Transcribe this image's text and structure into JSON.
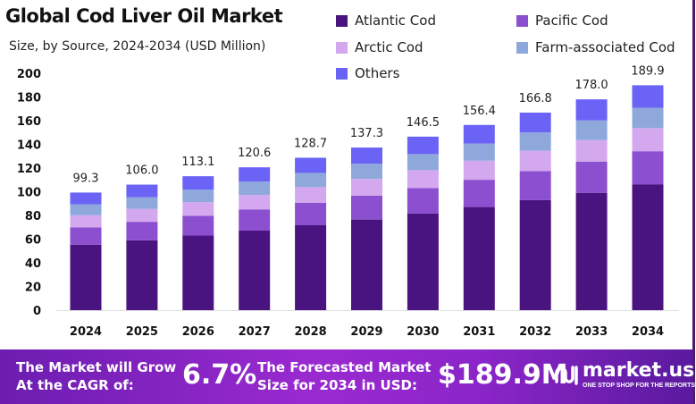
{
  "chart_data": {
    "type": "bar",
    "stacked": true,
    "title": "Global Cod Liver Oil Market",
    "subtitle": "Size, by Source, 2024-2034 (USD Million)",
    "categories": [
      "2024",
      "2025",
      "2026",
      "2027",
      "2028",
      "2029",
      "2030",
      "2031",
      "2032",
      "2033",
      "2034"
    ],
    "series": [
      {
        "name": "Atlantic Cod",
        "color": "#4a1480",
        "values": [
          55.3,
          59.0,
          63.0,
          67.2,
          71.7,
          76.5,
          81.6,
          87.1,
          92.9,
          99.1,
          106.3
        ]
      },
      {
        "name": "Pacific Cod",
        "color": "#8b4fd0",
        "values": [
          14.6,
          15.6,
          16.6,
          17.7,
          18.9,
          20.2,
          21.5,
          23.0,
          24.5,
          26.2,
          27.9
        ]
      },
      {
        "name": "Arctic Cod",
        "color": "#d4a8ee",
        "values": [
          10.2,
          10.9,
          11.6,
          12.4,
          13.3,
          14.1,
          15.1,
          16.1,
          17.2,
          18.3,
          19.5
        ]
      },
      {
        "name": "Farm-associated Cod",
        "color": "#8fa8dc",
        "values": [
          9.2,
          9.9,
          10.5,
          11.2,
          12.0,
          12.8,
          13.6,
          14.5,
          15.5,
          16.6,
          17.2
        ]
      },
      {
        "name": "Others",
        "color": "#6b63f5",
        "values": [
          10.0,
          10.6,
          11.4,
          12.1,
          12.8,
          13.7,
          14.7,
          15.7,
          16.7,
          17.8,
          19.0
        ]
      }
    ],
    "totals": [
      "99.3",
      "106.0",
      "113.1",
      "120.6",
      "128.7",
      "137.3",
      "146.5",
      "156.4",
      "166.8",
      "178.0",
      "189.9"
    ],
    "yticks": [
      "0",
      "20",
      "40",
      "60",
      "80",
      "100",
      "120",
      "140",
      "160",
      "180",
      "200"
    ],
    "ylim": [
      0,
      200
    ],
    "grid": false,
    "legend": "top-right"
  },
  "banner": {
    "cagr_label_1": "The Market will Grow",
    "cagr_label_2": "At the CAGR of:",
    "cagr_value": "6.7%",
    "forecast_label_1": "The Forecasted Market",
    "forecast_label_2": "Size for 2034 in USD:",
    "forecast_value": "$189.9M",
    "logo_text": "market.us",
    "logo_tagline": "ONE STOP SHOP FOR THE REPORTS"
  }
}
